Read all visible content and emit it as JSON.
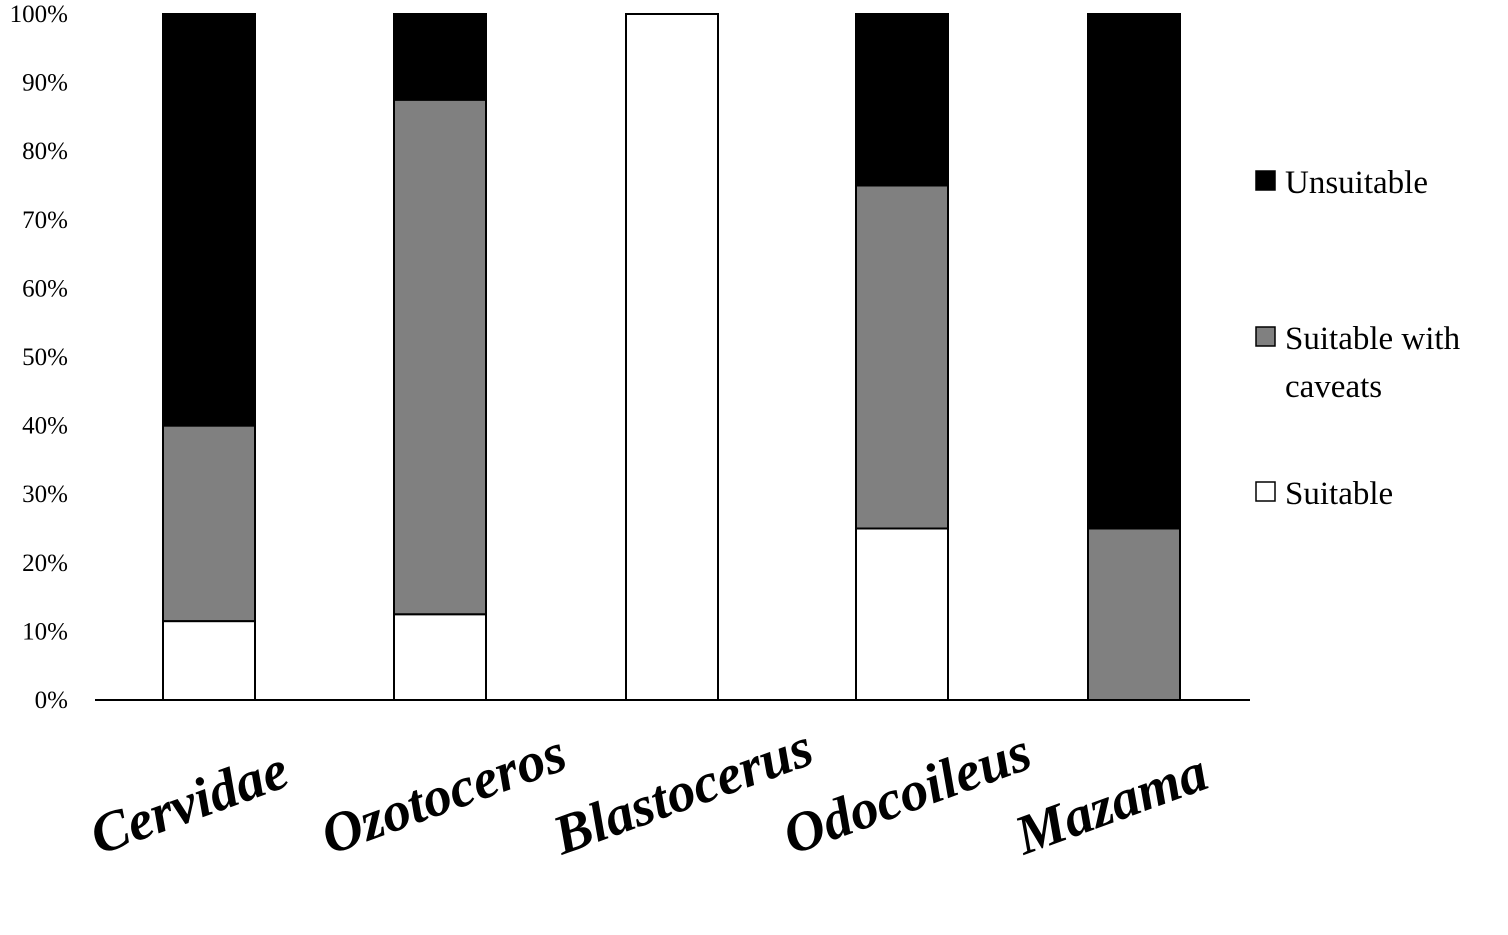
{
  "chart_data": {
    "type": "bar",
    "stacked": true,
    "percent_stacked": true,
    "categories": [
      "Cervidae",
      "Ozotoceros",
      "Blastocerus",
      "Odocoileus",
      "Mazama"
    ],
    "series": [
      {
        "name": "Suitable",
        "values": [
          11.5,
          12.5,
          100,
          25,
          0
        ],
        "color": "#ffffff"
      },
      {
        "name": "Suitable with caveats",
        "values": [
          28.5,
          75,
          0,
          50,
          25
        ],
        "color": "#808080"
      },
      {
        "name": "Unsuitable",
        "values": [
          60,
          12.5,
          0,
          25,
          75
        ],
        "color": "#000000"
      }
    ],
    "legend_order": [
      "Unsuitable",
      "Suitable with caveats",
      "Suitable"
    ],
    "legend_lines": {
      "Unsuitable": [
        "Unsuitable"
      ],
      "Suitable with caveats": [
        "Suitable with",
        "caveats"
      ],
      "Suitable": [
        "Suitable"
      ]
    },
    "y_ticks": [
      "0%",
      "10%",
      "20%",
      "30%",
      "40%",
      "50%",
      "60%",
      "70%",
      "80%",
      "90%",
      "100%"
    ],
    "ylim": [
      0,
      100
    ],
    "grid": false,
    "legend_position": "right",
    "title": "",
    "xlabel": "",
    "ylabel": ""
  }
}
